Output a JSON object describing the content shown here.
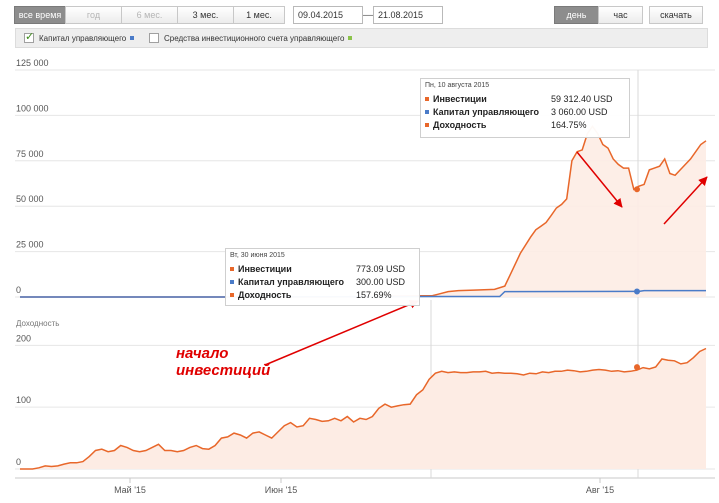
{
  "toolbar": {
    "periods": [
      {
        "label": "все время",
        "state": "active"
      },
      {
        "label": "год",
        "state": "disabled"
      },
      {
        "label": "6 мес.",
        "state": "disabled"
      },
      {
        "label": "3 мес.",
        "state": "normal"
      },
      {
        "label": "1 мес.",
        "state": "normal"
      }
    ],
    "date_from": "09.04.2015",
    "date_to": "21.08.2015",
    "date_separator": "—",
    "scale": [
      {
        "label": "день",
        "state": "active"
      },
      {
        "label": "час",
        "state": "normal"
      }
    ],
    "download_label": "скачать"
  },
  "legend": {
    "items": [
      {
        "label": "Капитал управляющего",
        "checked": true,
        "color": "#4a7bc8"
      },
      {
        "label": "Средства инвестиционного счета управляющего",
        "checked": false,
        "color": "#8bc34a"
      }
    ]
  },
  "tooltips": [
    {
      "date": "Вт, 30 июня 2015",
      "rows": [
        {
          "label": "Инвестиции",
          "value": "773.09  USD",
          "color": "#e8672a"
        },
        {
          "label": "Капитал управляющего",
          "value": "300.00  USD",
          "color": "#4a7bc8"
        },
        {
          "label": "Доходность",
          "value": "157.69%",
          "color": "#e8672a"
        }
      ]
    },
    {
      "date": "Пн, 10 августа 2015",
      "rows": [
        {
          "label": "Инвестиции",
          "value": "59 312.40  USD",
          "color": "#e8672a"
        },
        {
          "label": "Капитал управляющего",
          "value": "3 060.00  USD",
          "color": "#4a7bc8"
        },
        {
          "label": "Доходность",
          "value": "164.75%",
          "color": "#e8672a"
        }
      ]
    }
  ],
  "annotation": {
    "line1": "начало",
    "line2": "инвестиций",
    "color": "#e00000"
  },
  "colors": {
    "investments": "#e8672a",
    "capital": "#4a7bc8",
    "yield": "#e8672a",
    "annotation": "#e00000"
  },
  "chart_data": [
    {
      "type": "line",
      "series": [
        {
          "name": "Инвестиции",
          "color": "#e8672a",
          "x": [
            0,
            2,
            4,
            6,
            8,
            10,
            12,
            14,
            16,
            18,
            20,
            22,
            24,
            26,
            28,
            30,
            32,
            34,
            36,
            38,
            40,
            42,
            44,
            46,
            48,
            50,
            52,
            54,
            56,
            58,
            60,
            62,
            64,
            66,
            68,
            70,
            72,
            74,
            76,
            78,
            80,
            82,
            84,
            86,
            88,
            90,
            92,
            94,
            96,
            98,
            100,
            102,
            104,
            106,
            108,
            110,
            112,
            114,
            116,
            118,
            120,
            122,
            124,
            126,
            128,
            130,
            132,
            134,
            136
          ],
          "y": [
            0,
            0,
            0,
            0,
            0,
            0,
            0,
            0,
            0,
            0,
            0,
            0,
            0,
            0,
            0,
            0,
            0,
            0,
            0,
            0,
            0,
            0,
            0,
            0,
            0,
            0,
            0,
            0,
            0,
            0,
            0,
            0,
            0,
            0,
            0,
            0,
            0,
            0,
            0,
            0,
            0,
            0,
            0,
            0,
            0,
            0,
            0,
            0,
            0,
            0,
            0,
            0,
            0,
            0,
            0,
            0,
            0,
            0,
            0,
            0,
            0,
            0,
            0,
            0,
            0,
            0,
            0,
            0,
            0
          ],
          "x2": [
            0,
            20,
            40,
            60,
            80,
            81,
            83,
            85,
            88,
            90,
            92,
            94,
            95,
            97,
            99,
            100,
            101,
            102,
            103,
            104,
            105,
            106,
            107,
            108,
            109,
            110,
            111,
            112,
            113,
            114,
            115,
            116,
            117,
            118,
            119,
            120,
            121,
            122,
            123,
            124,
            125,
            126,
            127,
            128,
            129,
            130,
            131,
            132,
            133
          ],
          "y2": [
            0,
            0,
            0,
            0,
            773,
            1500,
            3000,
            3500,
            3800,
            4000,
            4200,
            6000,
            12000,
            24000,
            33000,
            37000,
            39000,
            41000,
            45000,
            49000,
            51000,
            54000,
            75000,
            80000,
            81000,
            90000,
            94000,
            90000,
            84000,
            82000,
            76000,
            73000,
            71000,
            71000,
            59300,
            61000,
            62000,
            70000,
            71000,
            72000,
            76000,
            68000,
            67000,
            70000,
            73000,
            76000,
            80000,
            84000,
            86000
          ]
        },
        {
          "name": "Капитал управляющего",
          "color": "#4a7bc8",
          "x": [
            0,
            40,
            80,
            93,
            94,
            120,
            121,
            133
          ],
          "y": [
            0,
            0,
            300,
            300,
            3000,
            3060,
            3500,
            3500
          ]
        }
      ],
      "xlabels": [
        "Май '15",
        "Июн '15",
        "Авг '15"
      ],
      "yticks": [
        0,
        25000,
        50000,
        75000,
        100000,
        125000
      ],
      "yticklabels": [
        "0",
        "25 000",
        "50 000",
        "75 000",
        "100 000",
        "125 000"
      ],
      "ylim": [
        0,
        125000
      ],
      "grid": true
    },
    {
      "type": "area",
      "title": "Доходность",
      "series": [
        {
          "name": "Доходность",
          "color": "#e8672a",
          "y": [
            0,
            0,
            0,
            2,
            5,
            4,
            5,
            8,
            10,
            10,
            12,
            20,
            30,
            32,
            28,
            30,
            38,
            35,
            30,
            28,
            30,
            35,
            40,
            30,
            30,
            28,
            30,
            35,
            38,
            33,
            32,
            38,
            50,
            52,
            58,
            55,
            50,
            58,
            60,
            55,
            50,
            60,
            70,
            75,
            68,
            70,
            82,
            80,
            77,
            78,
            82,
            78,
            85,
            76,
            82,
            80,
            85,
            98,
            105,
            100,
            102,
            104,
            105,
            120,
            128,
            145,
            155,
            158,
            156,
            157,
            156,
            156,
            157,
            157,
            158,
            155,
            156,
            155,
            155,
            154,
            152,
            155,
            154,
            157,
            156,
            158,
            158,
            160,
            159,
            157,
            158,
            160,
            161,
            160,
            158,
            159,
            157,
            158,
            160,
            164,
            162,
            165,
            178,
            176,
            175,
            170,
            172,
            180,
            190,
            195
          ],
          "x_start": 0,
          "x_end": 133
        }
      ],
      "yticks": [
        0,
        100,
        200
      ],
      "yticklabels": [
        "0",
        "100",
        "200"
      ],
      "ylim": [
        0,
        220
      ],
      "grid": true
    }
  ]
}
